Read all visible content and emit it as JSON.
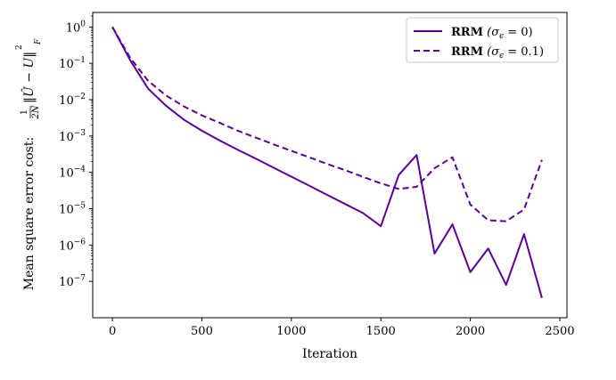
{
  "chart_data": {
    "type": "line",
    "xlabel": "Iteration",
    "ylabel": "Mean square error cost: (1/2N) ||Û − U||²_F",
    "ylabel_parts": {
      "prefix": "Mean square error cost: ",
      "frac_num": "1",
      "frac_den": "2N",
      "norm_open": "‖",
      "u_hat": "Û",
      "minus": " − U",
      "norm_close": "‖",
      "exp": "2",
      "sub": "F"
    },
    "xlim": [
      -110,
      2540
    ],
    "ylim_log10": [
      -8.0,
      0.4
    ],
    "y_scale": "log",
    "grid": false,
    "legend_position": "top-right",
    "x_ticks": [
      0,
      500,
      1000,
      1500,
      2000,
      2500
    ],
    "x_tick_labels": [
      "0",
      "500",
      "1000",
      "1500",
      "2000",
      "2500"
    ],
    "y_ticks_exp": [
      0,
      -1,
      -2,
      -3,
      -4,
      -5,
      -6,
      -7
    ],
    "y_tick_labels": [
      {
        "base": "10",
        "exp": "0"
      },
      {
        "base": "10",
        "exp": "−1"
      },
      {
        "base": "10",
        "exp": "−2"
      },
      {
        "base": "10",
        "exp": "−3"
      },
      {
        "base": "10",
        "exp": "−4"
      },
      {
        "base": "10",
        "exp": "−5"
      },
      {
        "base": "10",
        "exp": "−6"
      },
      {
        "base": "10",
        "exp": "−7"
      }
    ],
    "series": [
      {
        "name": "RRM (σε = 0)",
        "legend_bold": "RRM",
        "legend_rest": " (σ",
        "legend_sub": "ϵ",
        "legend_end": " = 0)",
        "color": "#5a0096",
        "dash": "solid",
        "x": [
          0,
          100,
          200,
          300,
          400,
          500,
          600,
          700,
          800,
          900,
          1000,
          1100,
          1200,
          1300,
          1400,
          1500,
          1600,
          1700,
          1800,
          1900,
          2000,
          2100,
          2200,
          2300,
          2400
        ],
        "y": [
          1.0,
          0.12,
          0.02,
          0.0068,
          0.0028,
          0.0014,
          0.00075,
          0.00042,
          0.00024,
          0.000135,
          7.6e-05,
          4.3e-05,
          2.4e-05,
          1.35e-05,
          7.6e-06,
          3.3e-06,
          8.5e-05,
          0.0003,
          5.8e-07,
          3.7e-06,
          1.8e-07,
          8e-07,
          8e-08,
          2e-06,
          3.5e-08
        ]
      },
      {
        "name": "RRM (σε = 0.1)",
        "legend_bold": "RRM",
        "legend_rest": " (σ",
        "legend_sub": "ϵ",
        "legend_end": " = 0.1)",
        "color": "#5a0096",
        "dash": "dashed",
        "x": [
          0,
          100,
          200,
          300,
          400,
          500,
          600,
          700,
          800,
          900,
          1000,
          1100,
          1200,
          1300,
          1400,
          1500,
          1600,
          1700,
          1800,
          1900,
          2000,
          2100,
          2200,
          2300,
          2400
        ],
        "y": [
          1.0,
          0.14,
          0.033,
          0.013,
          0.0065,
          0.0037,
          0.0023,
          0.0014,
          0.00091,
          0.00059,
          0.00039,
          0.00026,
          0.00017,
          0.000115,
          7.5e-05,
          5e-05,
          3.5e-05,
          4e-05,
          0.00013,
          0.00026,
          1.3e-05,
          4.8e-06,
          4.5e-06,
          9.5e-06,
          0.00022
        ]
      }
    ]
  }
}
